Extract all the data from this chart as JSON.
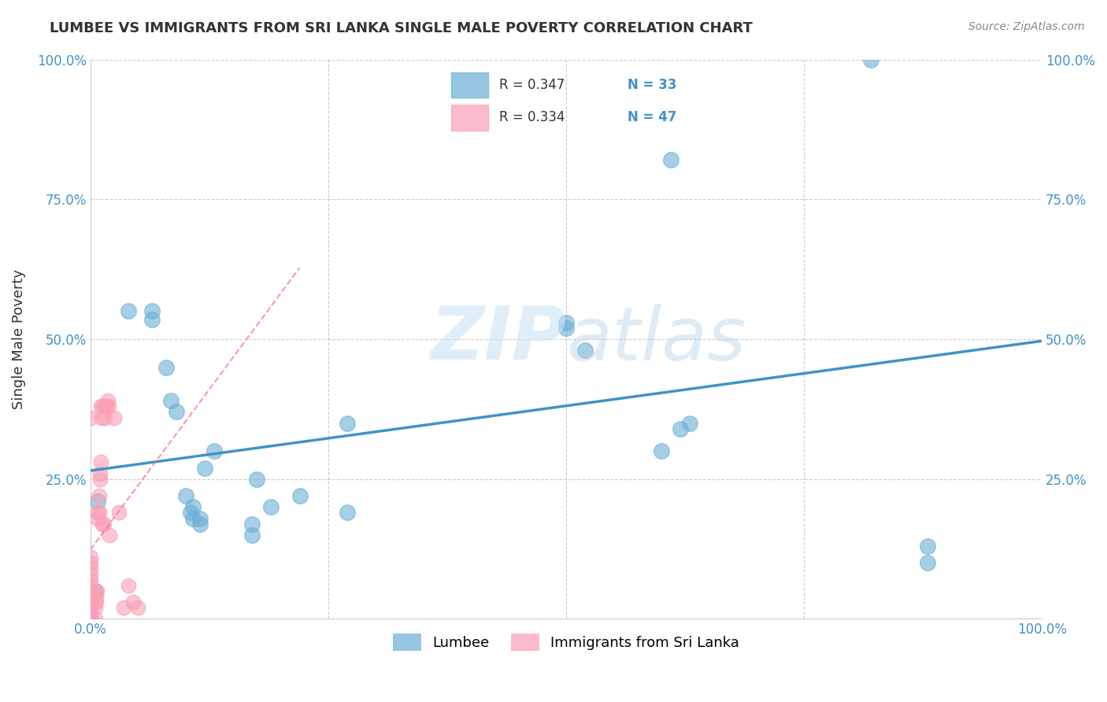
{
  "title": "LUMBEE VS IMMIGRANTS FROM SRI LANKA SINGLE MALE POVERTY CORRELATION CHART",
  "source": "Source: ZipAtlas.com",
  "ylabel": "Single Male Poverty",
  "legend_lumbee": "Lumbee",
  "legend_sri_lanka": "Immigrants from Sri Lanka",
  "lumbee_R": "R = 0.347",
  "lumbee_N": "N = 33",
  "sri_lanka_R": "R = 0.334",
  "sri_lanka_N": "N = 47",
  "lumbee_color": "#6baed6",
  "sri_lanka_color": "#fa9fb5",
  "lumbee_line_color": "#4292c6",
  "sri_lanka_line_color": "#f768a1",
  "lumbee_points_x": [
    0.005,
    0.008,
    0.04,
    0.065,
    0.065,
    0.08,
    0.085,
    0.09,
    0.1,
    0.105,
    0.108,
    0.108,
    0.115,
    0.115,
    0.12,
    0.13,
    0.17,
    0.17,
    0.175,
    0.19,
    0.22,
    0.27,
    0.27,
    0.5,
    0.5,
    0.52,
    0.6,
    0.61,
    0.62,
    0.63,
    0.82,
    0.88,
    0.88
  ],
  "lumbee_points_y": [
    0.05,
    0.21,
    0.55,
    0.55,
    0.535,
    0.45,
    0.39,
    0.37,
    0.22,
    0.19,
    0.2,
    0.18,
    0.18,
    0.17,
    0.27,
    0.3,
    0.15,
    0.17,
    0.25,
    0.2,
    0.22,
    0.19,
    0.35,
    0.53,
    0.52,
    0.48,
    0.3,
    0.82,
    0.34,
    0.35,
    1.0,
    0.1,
    0.13
  ],
  "sri_lanka_points_x": [
    0.0,
    0.0,
    0.0,
    0.0,
    0.0,
    0.0,
    0.0,
    0.0,
    0.0,
    0.0,
    0.0,
    0.0,
    0.0,
    0.0,
    0.0,
    0.0,
    0.0,
    0.005,
    0.005,
    0.005,
    0.006,
    0.006,
    0.007,
    0.008,
    0.008,
    0.009,
    0.009,
    0.01,
    0.01,
    0.011,
    0.011,
    0.012,
    0.013,
    0.013,
    0.014,
    0.015,
    0.016,
    0.017,
    0.018,
    0.019,
    0.02,
    0.025,
    0.03,
    0.035,
    0.04,
    0.045,
    0.05
  ],
  "sri_lanka_points_y": [
    0.0,
    0.0,
    0.0,
    0.0,
    0.0,
    0.02,
    0.02,
    0.03,
    0.04,
    0.05,
    0.06,
    0.07,
    0.08,
    0.09,
    0.1,
    0.11,
    0.36,
    0.0,
    0.02,
    0.03,
    0.03,
    0.04,
    0.05,
    0.18,
    0.19,
    0.19,
    0.22,
    0.25,
    0.26,
    0.28,
    0.38,
    0.36,
    0.17,
    0.38,
    0.17,
    0.36,
    0.38,
    0.38,
    0.39,
    0.38,
    0.15,
    0.36,
    0.19,
    0.02,
    0.06,
    0.03,
    0.02
  ],
  "tick_color": "#4292c6",
  "label_color": "#333333",
  "grid_color": "#cccccc",
  "source_color": "#888888"
}
